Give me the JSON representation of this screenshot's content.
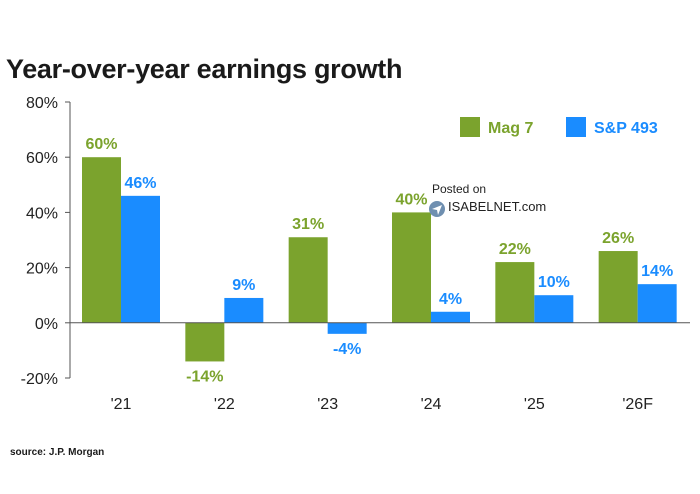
{
  "chart_data": {
    "type": "bar",
    "title": "Year-over-year earnings growth",
    "categories": [
      "'21",
      "'22",
      "'23",
      "'24",
      "'25",
      "'26F"
    ],
    "series": [
      {
        "name": "Mag 7",
        "color": "#7ba32d",
        "values": [
          60,
          -14,
          31,
          40,
          22,
          26
        ],
        "labels": [
          "60%",
          "-14%",
          "31%",
          "40%",
          "22%",
          "26%"
        ]
      },
      {
        "name": "S&P 493",
        "color": "#1a8cff",
        "values": [
          46,
          9,
          -4,
          4,
          10,
          14
        ],
        "labels": [
          "46%",
          "9%",
          "-4%",
          "4%",
          "10%",
          "14%"
        ]
      }
    ],
    "ylim": [
      -20,
      80
    ],
    "yticks": [
      -20,
      0,
      20,
      40,
      60,
      80
    ],
    "ytick_labels": [
      "-20%",
      "0%",
      "20%",
      "40%",
      "60%",
      "80%"
    ],
    "xlabel": "",
    "ylabel": "",
    "legend_position": "top-right",
    "grid": false
  },
  "source": "source: J.P. Morgan",
  "watermark": {
    "line1": "Posted on",
    "line2": "ISABELNET.com"
  }
}
